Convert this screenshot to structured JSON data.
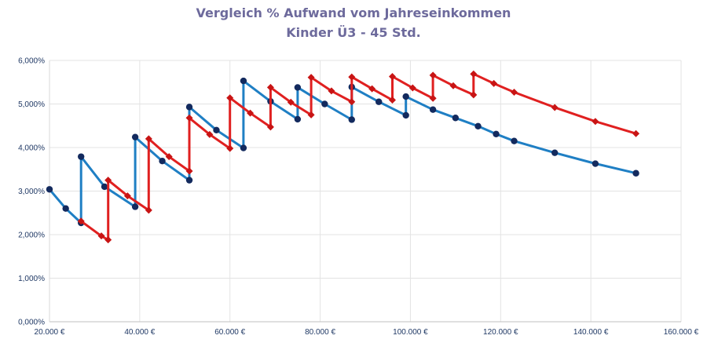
{
  "chart_data": {
    "type": "line",
    "title": "Vergleich % Aufwand vom Jahreseinkommen",
    "subtitle": "Kinder Ü3 - 45 Std.",
    "xlim": [
      20000,
      160000
    ],
    "ylim": [
      0,
      6
    ],
    "x_ticks": [
      "20.000 €",
      "40.000 €",
      "60.000 €",
      "80.000 €",
      "100.000 €",
      "120.000 €",
      "140.000 €",
      "160.000 €"
    ],
    "y_ticks": [
      "0,000%",
      "1,000%",
      "2,000%",
      "3,000%",
      "4,000%",
      "5,000%",
      "6,000%"
    ],
    "grid": true,
    "legend": "none",
    "colors": {
      "series_blue": "#1f7fc4",
      "series_red": "#e02020",
      "marker_blue": "#132a5e",
      "marker_red": "#c81414"
    },
    "series": [
      {
        "color": "#1f7fc4",
        "marker": "circle",
        "x": [
          20000,
          23600,
          27000,
          27000,
          32200,
          39000,
          39000,
          45000,
          51000,
          51000,
          57000,
          63000,
          63000,
          69000,
          75000,
          75000,
          81000,
          87000,
          87000,
          93000,
          99000,
          99000,
          105000,
          110000,
          115000,
          119000,
          123000,
          132000,
          141000,
          150000
        ],
        "y": [
          3.04,
          2.6,
          2.27,
          3.79,
          3.1,
          2.64,
          4.24,
          3.69,
          3.25,
          4.93,
          4.4,
          3.99,
          5.53,
          5.06,
          4.65,
          5.38,
          5.0,
          4.64,
          5.39,
          5.05,
          4.74,
          5.17,
          4.87,
          4.68,
          4.49,
          4.31,
          4.15,
          3.88,
          3.63,
          3.41
        ]
      },
      {
        "color": "#e02020",
        "marker": "diamond",
        "x": [
          27000,
          31500,
          33000,
          33000,
          37300,
          42000,
          42000,
          46500,
          51000,
          51000,
          55500,
          60000,
          60000,
          64500,
          69000,
          69000,
          73500,
          78000,
          78000,
          82500,
          87000,
          87000,
          91500,
          96000,
          96000,
          100500,
          105000,
          105000,
          109500,
          114000,
          114000,
          118500,
          123000,
          132000,
          141000,
          150000
        ],
        "y": [
          2.31,
          1.97,
          1.88,
          3.25,
          2.89,
          2.56,
          4.2,
          3.79,
          3.46,
          4.68,
          4.3,
          3.98,
          5.14,
          4.79,
          4.47,
          5.38,
          5.04,
          4.75,
          5.61,
          5.3,
          5.05,
          5.62,
          5.35,
          5.09,
          5.63,
          5.37,
          5.13,
          5.66,
          5.42,
          5.21,
          5.69,
          5.47,
          5.27,
          4.92,
          4.6,
          4.32
        ]
      }
    ]
  }
}
